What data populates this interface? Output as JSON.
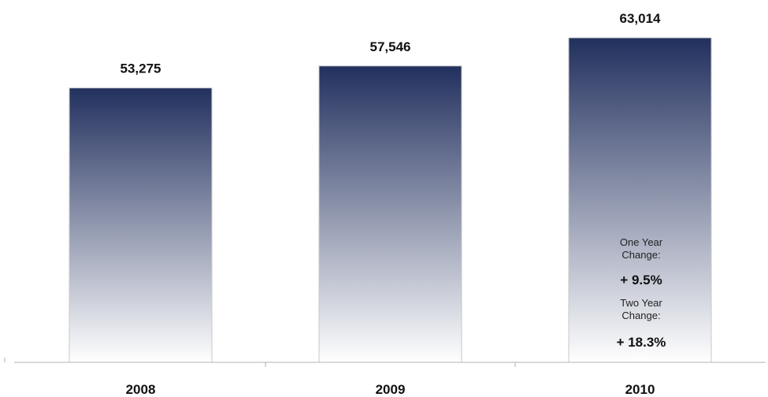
{
  "chart_data": {
    "type": "bar",
    "categories": [
      "2008",
      "2009",
      "2010"
    ],
    "values": [
      53275,
      57546,
      63014
    ],
    "value_labels": [
      "53,275",
      "57,546",
      "63,014"
    ],
    "ylim": [
      0,
      63014
    ],
    "grid": false,
    "legend": "none",
    "colors": {
      "bar_top": "#22305e",
      "bar_bottom": "#ffffff",
      "bar_border": "#c8c8c8",
      "axis": "#b0b0b0"
    },
    "annotations": {
      "one_year_label_line1": "One Year",
      "one_year_label_line2": "Change:",
      "one_year_value": "+ 9.5%",
      "two_year_label_line1": "Two Year",
      "two_year_label_line2": "Change:",
      "two_year_value": "+ 18.3%"
    }
  }
}
